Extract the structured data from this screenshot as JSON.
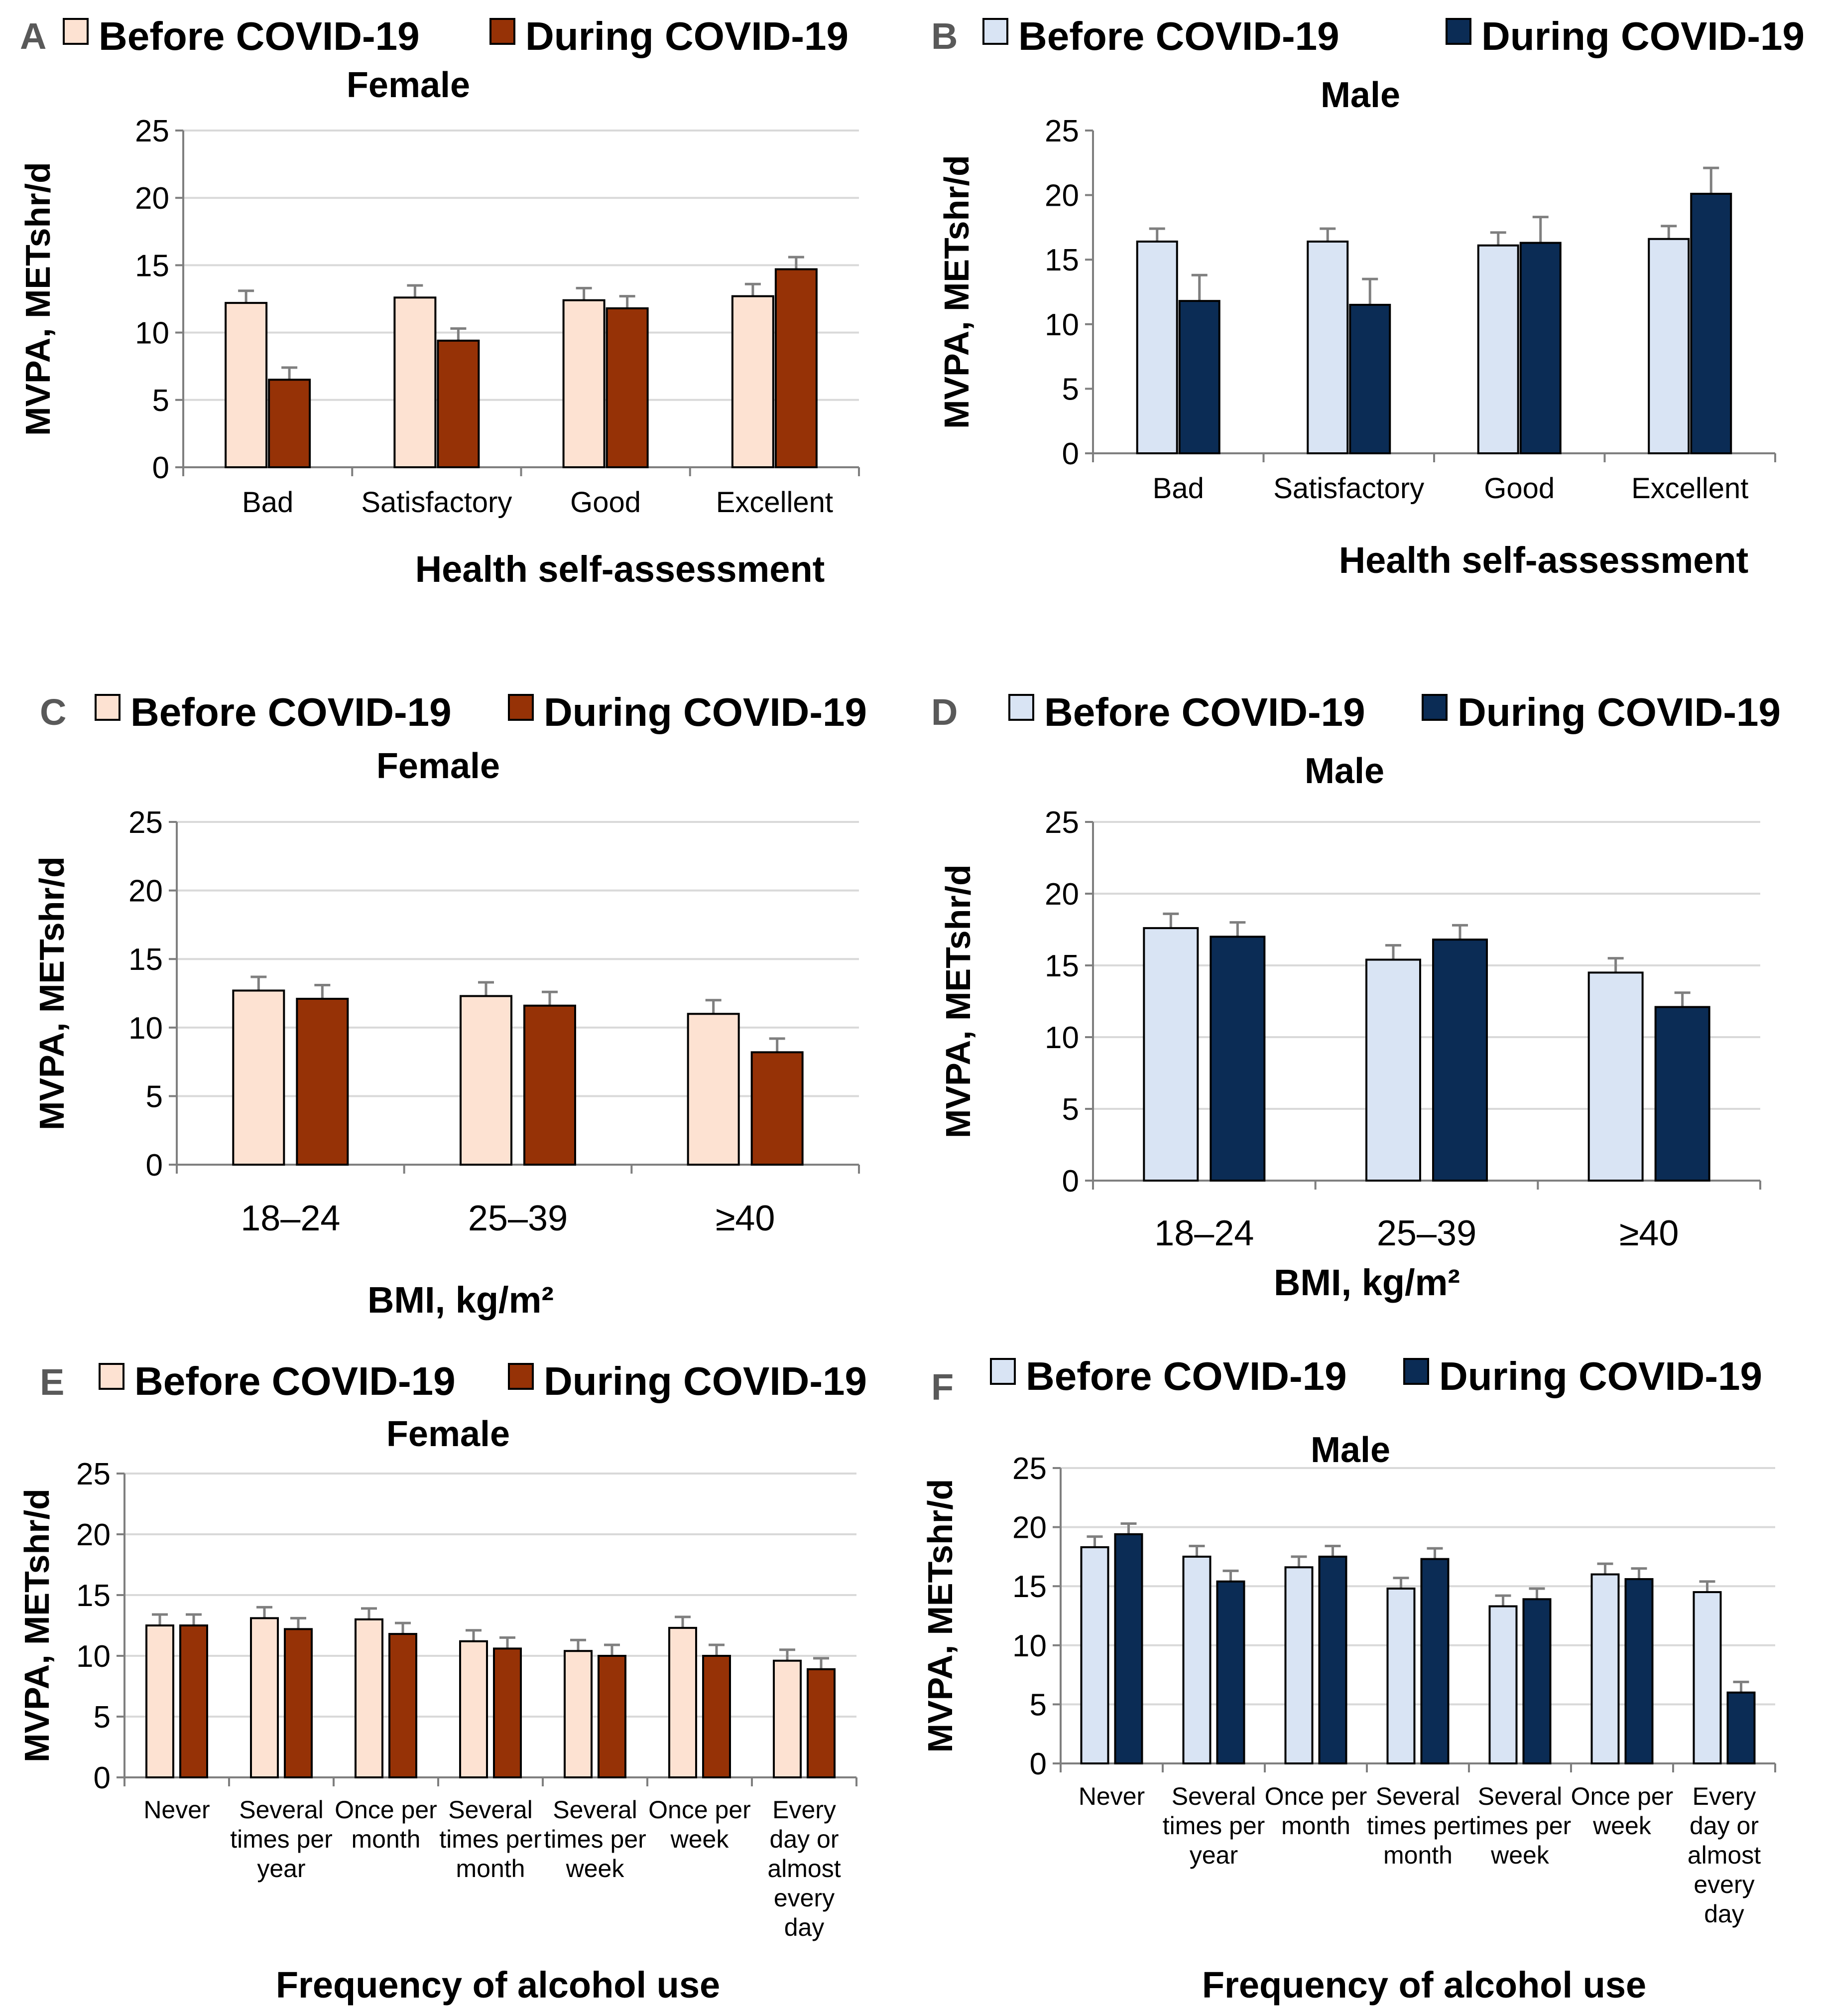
{
  "legend": {
    "before_label": "Before COVID-19",
    "during_label": "During COVID-19"
  },
  "colors": {
    "female_before": "#fde2d2",
    "female_during": "#963206",
    "male_before": "#d9e4f4",
    "male_during": "#0b2c55"
  },
  "chart_data": [
    {
      "panel": "A",
      "type": "bar",
      "title": "Female",
      "xlabel": "Health self-assessment",
      "ylabel": "MVPA, METshr/d",
      "ylim": [
        0,
        25
      ],
      "yticks": [
        "0",
        "5",
        "10",
        "15",
        "20",
        "25"
      ],
      "grid": true,
      "legend_position": "top",
      "categories": [
        [
          "Bad"
        ],
        [
          "Satisfactory"
        ],
        [
          "Good"
        ],
        [
          "Excellent"
        ]
      ],
      "series": [
        {
          "name": "Before COVID-19",
          "values": [
            12.2,
            12.6,
            12.4,
            12.7
          ],
          "errors": [
            0.9,
            0.9,
            0.9,
            0.9
          ]
        },
        {
          "name": "During COVID-19",
          "values": [
            6.5,
            9.4,
            11.8,
            14.7
          ],
          "errors": [
            0.9,
            0.9,
            0.9,
            0.9
          ]
        }
      ]
    },
    {
      "panel": "B",
      "type": "bar",
      "title": "Male",
      "xlabel": "Health self-assessment",
      "ylabel": "MVPA, METshr/d",
      "ylim": [
        0,
        25
      ],
      "yticks": [
        "0",
        "5",
        "10",
        "15",
        "20",
        "25"
      ],
      "grid": false,
      "legend_position": "top",
      "categories": [
        [
          "Bad"
        ],
        [
          "Satisfactory"
        ],
        [
          "Good"
        ],
        [
          "Excellent"
        ]
      ],
      "series": [
        {
          "name": "Before COVID-19",
          "values": [
            16.4,
            16.4,
            16.1,
            16.6
          ],
          "errors": [
            1.0,
            1.0,
            1.0,
            1.0
          ]
        },
        {
          "name": "During COVID-19",
          "values": [
            11.8,
            11.5,
            16.3,
            20.1
          ],
          "errors": [
            2.0,
            2.0,
            2.0,
            2.0
          ]
        }
      ]
    },
    {
      "panel": "C",
      "type": "bar",
      "title": "Female",
      "xlabel": "BMI, kg/m²",
      "ylabel": "MVPA, METshr/d",
      "ylim": [
        0,
        25
      ],
      "yticks": [
        "0",
        "5",
        "10",
        "15",
        "20",
        "25"
      ],
      "grid": true,
      "legend_position": "top",
      "categories": [
        [
          "18–24"
        ],
        [
          "25–39"
        ],
        [
          "≥40"
        ]
      ],
      "series": [
        {
          "name": "Before COVID-19",
          "values": [
            12.7,
            12.3,
            11.0
          ],
          "errors": [
            1.0,
            1.0,
            1.0
          ]
        },
        {
          "name": "During COVID-19",
          "values": [
            12.1,
            11.6,
            8.2
          ],
          "errors": [
            1.0,
            1.0,
            1.0
          ]
        }
      ]
    },
    {
      "panel": "D",
      "type": "bar",
      "title": "Male",
      "xlabel": "BMI, kg/m²",
      "ylabel": "MVPA, METshr/d",
      "ylim": [
        0,
        25
      ],
      "yticks": [
        "0",
        "5",
        "10",
        "15",
        "20",
        "25"
      ],
      "grid": true,
      "legend_position": "top",
      "categories": [
        [
          "18–24"
        ],
        [
          "25–39"
        ],
        [
          "≥40"
        ]
      ],
      "series": [
        {
          "name": "Before COVID-19",
          "values": [
            17.6,
            15.4,
            14.5
          ],
          "errors": [
            1.0,
            1.0,
            1.0
          ]
        },
        {
          "name": "During COVID-19",
          "values": [
            17.0,
            16.8,
            12.1
          ],
          "errors": [
            1.0,
            1.0,
            1.0
          ]
        }
      ]
    },
    {
      "panel": "E",
      "type": "bar",
      "title": "Female",
      "xlabel": "Frequency of alcohol use",
      "ylabel": "MVPA, METshr/d",
      "ylim": [
        0,
        25
      ],
      "yticks": [
        "0",
        "5",
        "10",
        "15",
        "20",
        "25"
      ],
      "grid": true,
      "legend_position": "top",
      "categories": [
        [
          "Never"
        ],
        [
          "Several",
          "times per",
          "year"
        ],
        [
          "Once per",
          "month"
        ],
        [
          "Several",
          "times per",
          "month"
        ],
        [
          "Several",
          "times per",
          "week"
        ],
        [
          "Once per",
          "week"
        ],
        [
          "Every",
          "day or",
          "almost",
          "every",
          "day"
        ]
      ],
      "series": [
        {
          "name": "Before COVID-19",
          "values": [
            12.5,
            13.1,
            13.0,
            11.2,
            10.4,
            12.3,
            9.6
          ],
          "errors": [
            0.9,
            0.9,
            0.9,
            0.9,
            0.9,
            0.9,
            0.9
          ]
        },
        {
          "name": "During COVID-19",
          "values": [
            12.5,
            12.2,
            11.8,
            10.6,
            10.0,
            10.0,
            8.9
          ],
          "errors": [
            0.9,
            0.9,
            0.9,
            0.9,
            0.9,
            0.9,
            0.9
          ]
        }
      ]
    },
    {
      "panel": "F",
      "type": "bar",
      "title": "Male",
      "xlabel": "Frequency of alcohol use",
      "ylabel": "MVPA, METshr/d",
      "ylim": [
        0,
        25
      ],
      "yticks": [
        "0",
        "5",
        "10",
        "15",
        "20",
        "25"
      ],
      "grid": true,
      "legend_position": "top",
      "categories": [
        [
          "Never"
        ],
        [
          "Several",
          "times per",
          "year"
        ],
        [
          "Once per",
          "month"
        ],
        [
          "Several",
          "times per",
          "month"
        ],
        [
          "Several",
          "times per",
          "week"
        ],
        [
          "Once per",
          "week"
        ],
        [
          "Every",
          "day or",
          "almost",
          "every",
          "day"
        ]
      ],
      "series": [
        {
          "name": "Before COVID-19",
          "values": [
            18.3,
            17.5,
            16.6,
            14.8,
            13.3,
            16.0,
            14.5
          ],
          "errors": [
            0.9,
            0.9,
            0.9,
            0.9,
            0.9,
            0.9,
            0.9
          ]
        },
        {
          "name": "During COVID-19",
          "values": [
            19.4,
            15.4,
            17.5,
            17.3,
            13.9,
            15.6,
            6.0
          ],
          "errors": [
            0.9,
            0.9,
            0.9,
            0.9,
            0.9,
            0.9,
            0.9
          ]
        }
      ]
    }
  ]
}
